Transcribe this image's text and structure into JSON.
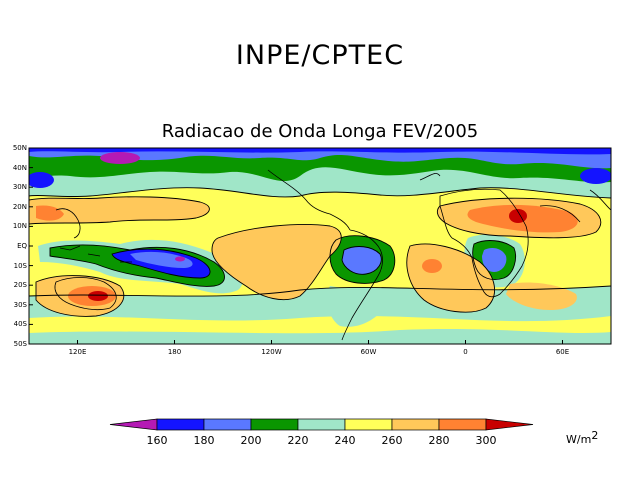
{
  "header": {
    "org": "INPE/CPTEC",
    "title": "Radiacao de Onda Longa FEV/2005"
  },
  "map": {
    "lat_labels": [
      "50N",
      "40N",
      "30N",
      "20N",
      "10N",
      "EQ",
      "10S",
      "20S",
      "30S",
      "40S",
      "50S"
    ],
    "lon_labels": [
      {
        "label": "120E",
        "lon": 120
      },
      {
        "label": "180",
        "lon": 180
      },
      {
        "label": "120W",
        "lon": 240
      },
      {
        "label": "60W",
        "lon": 300
      },
      {
        "label": "0",
        "lon": 360
      },
      {
        "label": "60E",
        "lon": 420
      }
    ],
    "lon_range": [
      90,
      450
    ],
    "lat_range": [
      -50,
      50
    ]
  },
  "colorbar": {
    "levels": [
      "160",
      "180",
      "200",
      "220",
      "240",
      "260",
      "280",
      "300"
    ],
    "colors": [
      "#b41ab4",
      "#1414ff",
      "#5a78ff",
      "#0a9600",
      "#a0e6c8",
      "#ffff5a",
      "#ffc85a",
      "#ff8232",
      "#c80000"
    ],
    "units": "W/m",
    "units_exp": "2"
  }
}
